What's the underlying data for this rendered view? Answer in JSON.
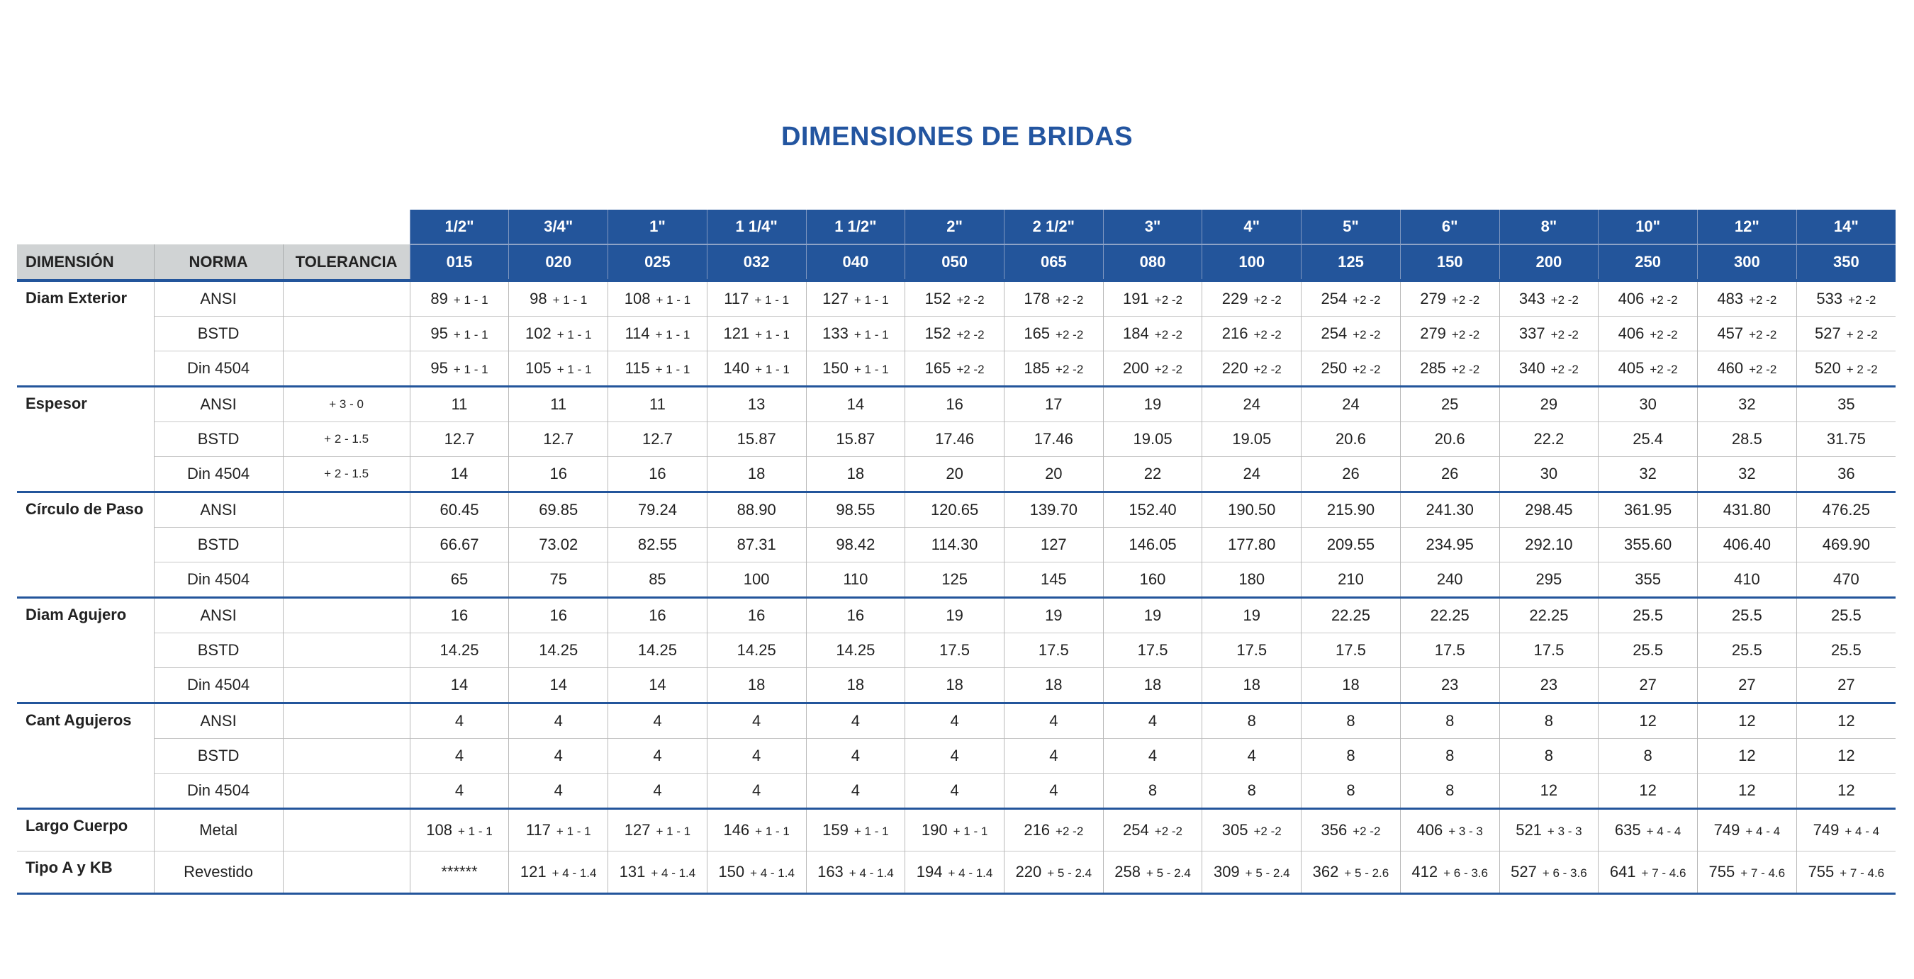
{
  "title": "DIMENSIONES DE BRIDAS",
  "headers": {
    "dimension": "DIMENSIÓN",
    "norma": "NORMA",
    "tolerancia": "TOLERANCIA"
  },
  "columns": [
    {
      "size": "1/2\"",
      "code": "015"
    },
    {
      "size": "3/4\"",
      "code": "020"
    },
    {
      "size": "1\"",
      "code": "025"
    },
    {
      "size": "1 1/4\"",
      "code": "032"
    },
    {
      "size": "1 1/2\"",
      "code": "040"
    },
    {
      "size": "2\"",
      "code": "050"
    },
    {
      "size": "2 1/2\"",
      "code": "065"
    },
    {
      "size": "3\"",
      "code": "080"
    },
    {
      "size": "4\"",
      "code": "100"
    },
    {
      "size": "5\"",
      "code": "125"
    },
    {
      "size": "6\"",
      "code": "150"
    },
    {
      "size": "8\"",
      "code": "200"
    },
    {
      "size": "10\"",
      "code": "250"
    },
    {
      "size": "12\"",
      "code": "300"
    },
    {
      "size": "14\"",
      "code": "350"
    }
  ],
  "groups": [
    {
      "dimension": "Diam Exterior",
      "rows": [
        {
          "norma": "ANSI",
          "tolerancia": "",
          "values": [
            "89",
            "98",
            "108",
            "117",
            "127",
            "152",
            "178",
            "191",
            "229",
            "254",
            "279",
            "343",
            "406",
            "483",
            "533"
          ],
          "tols": [
            "+ 1 - 1",
            "+ 1 - 1",
            "+ 1 - 1",
            "+ 1 - 1",
            "+ 1 - 1",
            "+2 -2",
            "+2 -2",
            "+2 -2",
            "+2 -2",
            "+2 -2",
            "+2 -2",
            "+2 -2",
            "+2 -2",
            "+2 -2",
            "+2 -2"
          ]
        },
        {
          "norma": "BSTD",
          "tolerancia": "",
          "values": [
            "95",
            "102",
            "114",
            "121",
            "133",
            "152",
            "165",
            "184",
            "216",
            "254",
            "279",
            "337",
            "406",
            "457",
            "527"
          ],
          "tols": [
            "+ 1 - 1",
            "+ 1 - 1",
            "+ 1 - 1",
            "+ 1 - 1",
            "+ 1 - 1",
            "+2 -2",
            "+2 -2",
            "+2 -2",
            "+2 -2",
            "+2 -2",
            "+2 -2",
            "+2 -2",
            "+2 -2",
            "+2 -2",
            "+ 2 -2"
          ]
        },
        {
          "norma": "Din 4504",
          "tolerancia": "",
          "values": [
            "95",
            "105",
            "115",
            "140",
            "150",
            "165",
            "185",
            "200",
            "220",
            "250",
            "285",
            "340",
            "405",
            "460",
            "520"
          ],
          "tols": [
            "+ 1 - 1",
            "+ 1 - 1",
            "+ 1 - 1",
            "+ 1 - 1",
            "+ 1 - 1",
            "+2 -2",
            "+2 -2",
            "+2 -2",
            "+2 -2",
            "+2 -2",
            "+2 -2",
            "+2 -2",
            "+2 -2",
            "+2 -2",
            "+ 2 -2"
          ]
        }
      ]
    },
    {
      "dimension": "Espesor",
      "rows": [
        {
          "norma": "ANSI",
          "tolerancia": "+ 3 - 0",
          "values": [
            "11",
            "11",
            "11",
            "13",
            "14",
            "16",
            "17",
            "19",
            "24",
            "24",
            "25",
            "29",
            "30",
            "32",
            "35"
          ]
        },
        {
          "norma": "BSTD",
          "tolerancia": "+ 2 - 1.5",
          "values": [
            "12.7",
            "12.7",
            "12.7",
            "15.87",
            "15.87",
            "17.46",
            "17.46",
            "19.05",
            "19.05",
            "20.6",
            "20.6",
            "22.2",
            "25.4",
            "28.5",
            "31.75"
          ]
        },
        {
          "norma": "Din 4504",
          "tolerancia": "+ 2 - 1.5",
          "values": [
            "14",
            "16",
            "16",
            "18",
            "18",
            "20",
            "20",
            "22",
            "24",
            "26",
            "26",
            "30",
            "32",
            "32",
            "36"
          ]
        }
      ]
    },
    {
      "dimension": "Círculo de Paso",
      "rows": [
        {
          "norma": "ANSI",
          "tolerancia": "",
          "values": [
            "60.45",
            "69.85",
            "79.24",
            "88.90",
            "98.55",
            "120.65",
            "139.70",
            "152.40",
            "190.50",
            "215.90",
            "241.30",
            "298.45",
            "361.95",
            "431.80",
            "476.25"
          ]
        },
        {
          "norma": "BSTD",
          "tolerancia": "",
          "values": [
            "66.67",
            "73.02",
            "82.55",
            "87.31",
            "98.42",
            "114.30",
            "127",
            "146.05",
            "177.80",
            "209.55",
            "234.95",
            "292.10",
            "355.60",
            "406.40",
            "469.90"
          ]
        },
        {
          "norma": "Din 4504",
          "tolerancia": "",
          "values": [
            "65",
            "75",
            "85",
            "100",
            "110",
            "125",
            "145",
            "160",
            "180",
            "210",
            "240",
            "295",
            "355",
            "410",
            "470"
          ]
        }
      ]
    },
    {
      "dimension": "Diam Agujero",
      "rows": [
        {
          "norma": "ANSI",
          "tolerancia": "",
          "values": [
            "16",
            "16",
            "16",
            "16",
            "16",
            "19",
            "19",
            "19",
            "19",
            "22.25",
            "22.25",
            "22.25",
            "25.5",
            "25.5",
            "25.5"
          ]
        },
        {
          "norma": "BSTD",
          "tolerancia": "",
          "values": [
            "14.25",
            "14.25",
            "14.25",
            "14.25",
            "14.25",
            "17.5",
            "17.5",
            "17.5",
            "17.5",
            "17.5",
            "17.5",
            "17.5",
            "25.5",
            "25.5",
            "25.5"
          ]
        },
        {
          "norma": "Din 4504",
          "tolerancia": "",
          "values": [
            "14",
            "14",
            "14",
            "18",
            "18",
            "18",
            "18",
            "18",
            "18",
            "18",
            "23",
            "23",
            "27",
            "27",
            "27"
          ]
        }
      ]
    },
    {
      "dimension": "Cant Agujeros",
      "rows": [
        {
          "norma": "ANSI",
          "tolerancia": "",
          "values": [
            "4",
            "4",
            "4",
            "4",
            "4",
            "4",
            "4",
            "4",
            "8",
            "8",
            "8",
            "8",
            "12",
            "12",
            "12"
          ]
        },
        {
          "norma": "BSTD",
          "tolerancia": "",
          "values": [
            "4",
            "4",
            "4",
            "4",
            "4",
            "4",
            "4",
            "4",
            "4",
            "8",
            "8",
            "8",
            "8",
            "12",
            "12"
          ]
        },
        {
          "norma": "Din 4504",
          "tolerancia": "",
          "values": [
            "4",
            "4",
            "4",
            "4",
            "4",
            "4",
            "4",
            "8",
            "8",
            "8",
            "8",
            "12",
            "12",
            "12",
            "12"
          ]
        }
      ]
    },
    {
      "dimension": "",
      "rows": [
        {
          "dimension": "Largo Cuerpo",
          "norma": "Metal",
          "tolerancia": "",
          "values": [
            "108",
            "117",
            "127",
            "146",
            "159",
            "190",
            "216",
            "254",
            "305",
            "356",
            "406",
            "521",
            "635",
            "749",
            "749"
          ],
          "tols": [
            "+ 1 - 1",
            "+ 1 - 1",
            "+ 1 - 1",
            "+ 1 - 1",
            "+ 1 - 1",
            "+ 1 - 1",
            "+2 -2",
            "+2 -2",
            "+2 -2",
            "+2 -2",
            "+ 3 - 3",
            "+ 3 - 3",
            "+ 4 - 4",
            "+ 4 - 4",
            "+ 4 - 4"
          ]
        },
        {
          "dimension": "Tipo A y KB",
          "norma": "Revestido",
          "tolerancia": "",
          "values": [
            "******",
            "121",
            "131",
            "150",
            "163",
            "194",
            "220",
            "258",
            "309",
            "362",
            "412",
            "527",
            "641",
            "755",
            "755"
          ],
          "tols": [
            "",
            "+ 4 - 1.4",
            "+ 4 - 1.4",
            "+ 4 - 1.4",
            "+ 4 - 1.4",
            "+ 4 - 1.4",
            "+ 5 - 2.4",
            "+ 5 - 2.4",
            "+ 5 - 2.4",
            "+ 5 - 2.6",
            "+ 6 - 3.6",
            "+ 6 - 3.6",
            "+ 7 - 4.6",
            "+ 7 - 4.6",
            "+ 7 - 4.6"
          ]
        }
      ]
    }
  ],
  "colors": {
    "header_blue": "#23559b",
    "header_gray": "#d0d3d4",
    "title": "#2355a0"
  }
}
